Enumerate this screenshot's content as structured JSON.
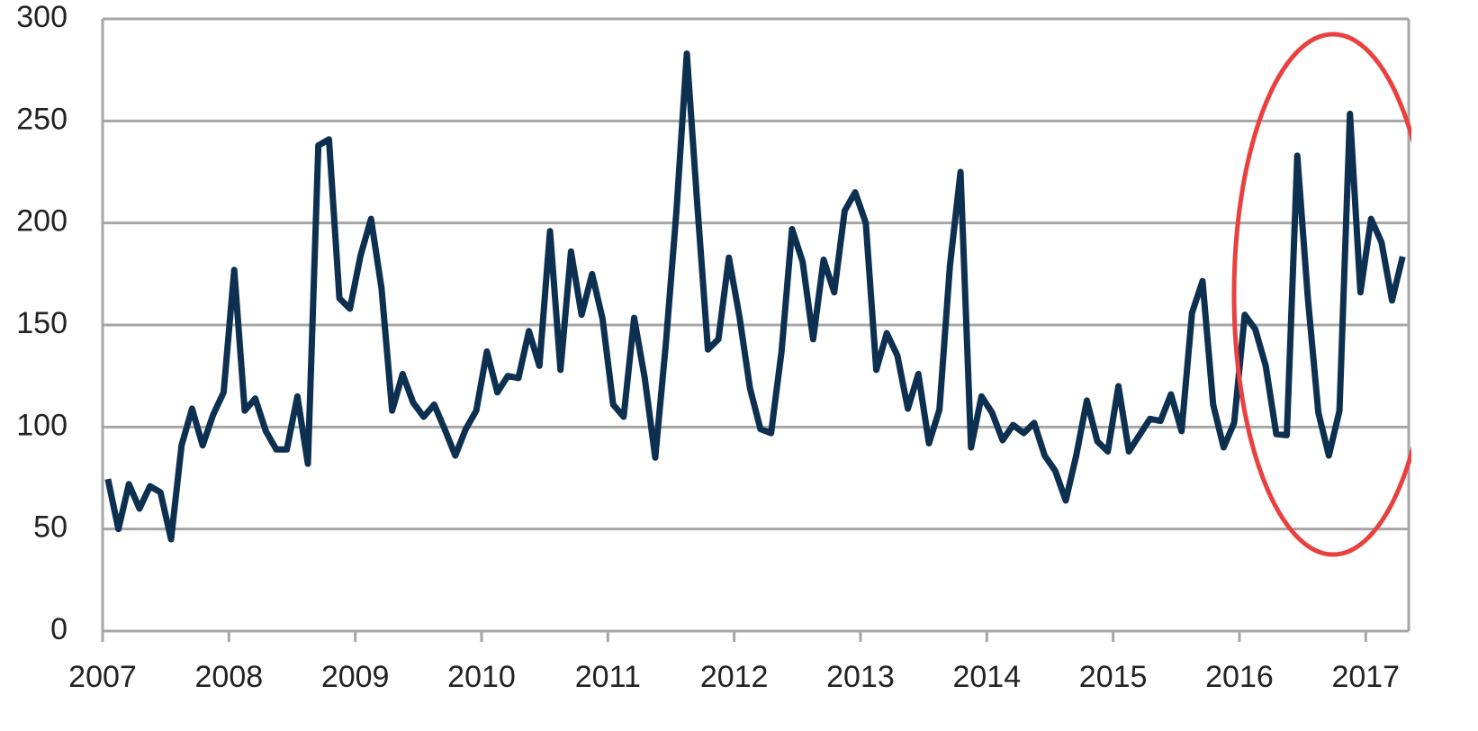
{
  "chart_data": {
    "type": "line",
    "x": [
      2007.042,
      2007.125,
      2007.208,
      2007.292,
      2007.375,
      2007.458,
      2007.542,
      2007.625,
      2007.708,
      2007.792,
      2007.875,
      2007.958,
      2008.042,
      2008.125,
      2008.208,
      2008.292,
      2008.375,
      2008.458,
      2008.542,
      2008.625,
      2008.708,
      2008.792,
      2008.875,
      2008.958,
      2009.042,
      2009.125,
      2009.208,
      2009.292,
      2009.375,
      2009.458,
      2009.542,
      2009.625,
      2009.708,
      2009.792,
      2009.875,
      2009.958,
      2010.042,
      2010.125,
      2010.208,
      2010.292,
      2010.375,
      2010.458,
      2010.542,
      2010.625,
      2010.708,
      2010.792,
      2010.875,
      2010.958,
      2011.042,
      2011.125,
      2011.208,
      2011.292,
      2011.375,
      2011.458,
      2011.542,
      2011.625,
      2011.708,
      2011.792,
      2011.875,
      2011.958,
      2012.042,
      2012.125,
      2012.208,
      2012.292,
      2012.375,
      2012.458,
      2012.542,
      2012.625,
      2012.708,
      2012.792,
      2012.875,
      2012.958,
      2013.042,
      2013.125,
      2013.208,
      2013.292,
      2013.375,
      2013.458,
      2013.542,
      2013.625,
      2013.708,
      2013.792,
      2013.875,
      2013.958,
      2014.042,
      2014.125,
      2014.208,
      2014.292,
      2014.375,
      2014.458,
      2014.542,
      2014.625,
      2014.708,
      2014.792,
      2014.875,
      2014.958,
      2015.042,
      2015.125,
      2015.208,
      2015.292,
      2015.375,
      2015.458,
      2015.542,
      2015.625,
      2015.708,
      2015.792,
      2015.875,
      2015.958,
      2016.042,
      2016.125,
      2016.208,
      2016.292,
      2016.375,
      2016.458,
      2016.542,
      2016.625,
      2016.708,
      2016.792,
      2016.875,
      2016.958,
      2017.042,
      2017.125,
      2017.208,
      2017.292
    ],
    "series": [
      {
        "color": "#0d2f50",
        "values": [
          74.5,
          50,
          72,
          60,
          71,
          68,
          45,
          91,
          109,
          91,
          106,
          117,
          177,
          108,
          114,
          98,
          89,
          89,
          115,
          82,
          238,
          241,
          163,
          158,
          184,
          202,
          168,
          108,
          126,
          112,
          105,
          111,
          99,
          86,
          99,
          108,
          137,
          117,
          125,
          124,
          147,
          130,
          196,
          128,
          186,
          155,
          175,
          153,
          111,
          105,
          153.5,
          124,
          85,
          140,
          205,
          283,
          209,
          138,
          143,
          183,
          154,
          119,
          99,
          97,
          137,
          197,
          181,
          143,
          182,
          166,
          206,
          215,
          200,
          128,
          146,
          135,
          109,
          126,
          92,
          108.5,
          179,
          225,
          90,
          115,
          107,
          93.5,
          101,
          97,
          102,
          86,
          78.5,
          64,
          86,
          113,
          93,
          88,
          120,
          88,
          96,
          104,
          103,
          116,
          98,
          156,
          171.5,
          111,
          90,
          102,
          155,
          148,
          130,
          96.5,
          96,
          233,
          163,
          107,
          86,
          108,
          253.5,
          166,
          202,
          190.5,
          162,
          183.5
        ]
      }
    ],
    "xlim": [
      2007,
      2017.34
    ],
    "xticks": [
      2007,
      2008,
      2009,
      2010,
      2011,
      2012,
      2013,
      2014,
      2015,
      2016,
      2017
    ],
    "ylim": [
      0,
      300
    ],
    "yticks": [
      0,
      50,
      100,
      150,
      200,
      250,
      300
    ],
    "grid": true
  }
}
